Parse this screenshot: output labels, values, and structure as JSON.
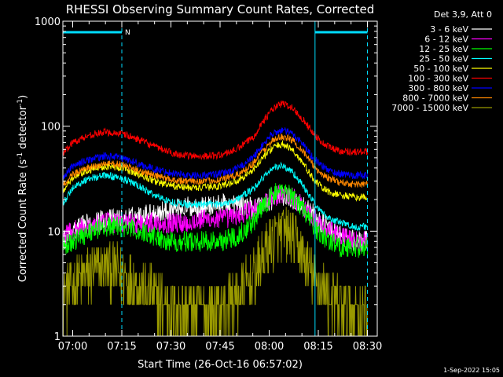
{
  "chart_data": {
    "type": "line",
    "title": "RHESSI Observing Summary Count Rates, Corrected",
    "xlabel": "Start Time (26-Oct-16 06:57:02)",
    "ylabel_main": "Corrected Count Rate (s",
    "ylabel_sup1": "-1",
    "ylabel_mid": " detector",
    "ylabel_sup2": "-1",
    "ylabel_end": ")",
    "footer": "1-Sep-2022 15:05",
    "y_scale": "log",
    "ylim": [
      1,
      1000
    ],
    "xlim_minutes": [
      -3,
      93
    ],
    "x_ticks": [
      {
        "m": 0,
        "label": "07:00"
      },
      {
        "m": 15,
        "label": "07:15"
      },
      {
        "m": 30,
        "label": "07:30"
      },
      {
        "m": 45,
        "label": "07:45"
      },
      {
        "m": 60,
        "label": "08:00"
      },
      {
        "m": 75,
        "label": "08:15"
      },
      {
        "m": 90,
        "label": "08:30"
      }
    ],
    "y_ticks": [
      {
        "v": 1,
        "label": "1"
      },
      {
        "v": 10,
        "label": "10"
      },
      {
        "v": 100,
        "label": "100"
      },
      {
        "v": 1000,
        "label": "1000"
      }
    ],
    "legend_title": "Det 3,9, Att 0",
    "legend_position": "right",
    "night_markers_minutes": [
      15,
      90
    ],
    "day_markers_minutes": [
      -3,
      74
    ],
    "attenuator_bars": [
      {
        "start": -3,
        "end": 15,
        "label": "N"
      },
      {
        "start": 74,
        "end": 90,
        "label": ""
      }
    ],
    "data_window_minutes": [
      -3,
      90
    ],
    "series": [
      {
        "name": "3 - 6 keV",
        "color": "#ffffff",
        "x": [
          -3,
          0,
          5,
          10,
          15,
          20,
          25,
          30,
          35,
          40,
          45,
          50,
          55,
          58,
          61,
          64,
          67,
          70,
          73,
          76,
          79,
          82,
          86,
          90
        ],
        "y": [
          8,
          10,
          12,
          13,
          13,
          14,
          15,
          16,
          17,
          17,
          18,
          18,
          17,
          18,
          20,
          22,
          20,
          18,
          15,
          12,
          10,
          9,
          8,
          8
        ]
      },
      {
        "name": "6 - 12 keV",
        "color": "#ff00ff",
        "x": [
          -3,
          0,
          5,
          10,
          15,
          20,
          25,
          30,
          35,
          40,
          45,
          50,
          55,
          58,
          61,
          64,
          67,
          70,
          73,
          76,
          79,
          82,
          86,
          90
        ],
        "y": [
          9,
          10,
          11,
          12,
          12,
          12,
          12,
          12,
          12,
          13,
          13,
          14,
          16,
          18,
          21,
          23,
          21,
          18,
          14,
          11,
          10,
          9,
          8,
          8
        ]
      },
      {
        "name": "12 - 25 keV",
        "color": "#00ff00",
        "x": [
          -3,
          0,
          5,
          10,
          15,
          20,
          25,
          30,
          35,
          40,
          45,
          50,
          55,
          58,
          61,
          64,
          67,
          70,
          73,
          76,
          79,
          82,
          86,
          90
        ],
        "y": [
          7,
          8,
          10,
          11,
          11,
          10,
          9,
          8,
          8,
          8,
          8,
          9,
          12,
          17,
          22,
          25,
          22,
          17,
          12,
          9,
          8,
          7,
          7,
          7
        ]
      },
      {
        "name": "25 - 50 keV",
        "color": "#00ffff",
        "x": [
          -3,
          0,
          5,
          10,
          15,
          20,
          25,
          30,
          35,
          40,
          45,
          50,
          55,
          58,
          61,
          64,
          67,
          70,
          73,
          76,
          79,
          82,
          86,
          90
        ],
        "y": [
          18,
          26,
          32,
          34,
          32,
          27,
          22,
          19,
          18,
          18,
          18,
          20,
          25,
          32,
          40,
          42,
          37,
          28,
          20,
          15,
          13,
          12,
          11,
          11
        ]
      },
      {
        "name": "50 - 100 keV",
        "color": "#ffff00",
        "x": [
          -3,
          0,
          5,
          10,
          15,
          20,
          25,
          30,
          35,
          40,
          45,
          50,
          55,
          58,
          61,
          64,
          67,
          70,
          73,
          76,
          79,
          82,
          86,
          90
        ],
        "y": [
          24,
          32,
          38,
          42,
          40,
          35,
          30,
          27,
          26,
          26,
          27,
          30,
          38,
          50,
          62,
          68,
          60,
          46,
          33,
          26,
          23,
          22,
          21,
          21
        ]
      },
      {
        "name": "100 - 300 keV",
        "color": "#ff0000",
        "x": [
          -3,
          0,
          5,
          10,
          15,
          20,
          25,
          30,
          35,
          40,
          45,
          50,
          55,
          58,
          61,
          64,
          67,
          70,
          73,
          76,
          79,
          82,
          86,
          90
        ],
        "y": [
          55,
          70,
          82,
          88,
          85,
          75,
          64,
          56,
          52,
          52,
          53,
          60,
          78,
          110,
          145,
          165,
          150,
          120,
          90,
          70,
          62,
          58,
          57,
          57
        ]
      },
      {
        "name": "300 - 800 keV",
        "color": "#0000ff",
        "x": [
          -3,
          0,
          5,
          10,
          15,
          20,
          25,
          30,
          35,
          40,
          45,
          50,
          55,
          58,
          61,
          64,
          67,
          70,
          73,
          76,
          79,
          82,
          86,
          90
        ],
        "y": [
          32,
          42,
          48,
          52,
          50,
          44,
          39,
          36,
          34,
          34,
          35,
          39,
          50,
          66,
          85,
          92,
          85,
          70,
          52,
          42,
          37,
          35,
          34,
          34
        ]
      },
      {
        "name": "800 - 7000 keV",
        "color": "#ff8800",
        "x": [
          -3,
          0,
          5,
          10,
          15,
          20,
          25,
          30,
          35,
          40,
          45,
          50,
          55,
          58,
          61,
          64,
          67,
          70,
          73,
          76,
          79,
          82,
          86,
          90
        ],
        "y": [
          27,
          35,
          40,
          44,
          43,
          38,
          34,
          31,
          30,
          30,
          31,
          34,
          44,
          58,
          72,
          80,
          74,
          60,
          44,
          35,
          31,
          29,
          28,
          28
        ]
      },
      {
        "name": "7000 - 15000 keV",
        "color": "#999900",
        "x": [
          -3,
          0,
          5,
          10,
          15,
          20,
          25,
          30,
          35,
          40,
          45,
          50,
          55,
          58,
          61,
          64,
          67,
          70,
          73,
          76,
          79,
          82,
          86,
          90
        ],
        "y": [
          2.5,
          3,
          4,
          4.5,
          4,
          3,
          2.3,
          1.9,
          1.7,
          1.7,
          1.8,
          2.3,
          3.5,
          5.5,
          8,
          9.5,
          8.5,
          6,
          3.8,
          2.8,
          2.2,
          1.9,
          1.8,
          1.8
        ]
      }
    ]
  }
}
